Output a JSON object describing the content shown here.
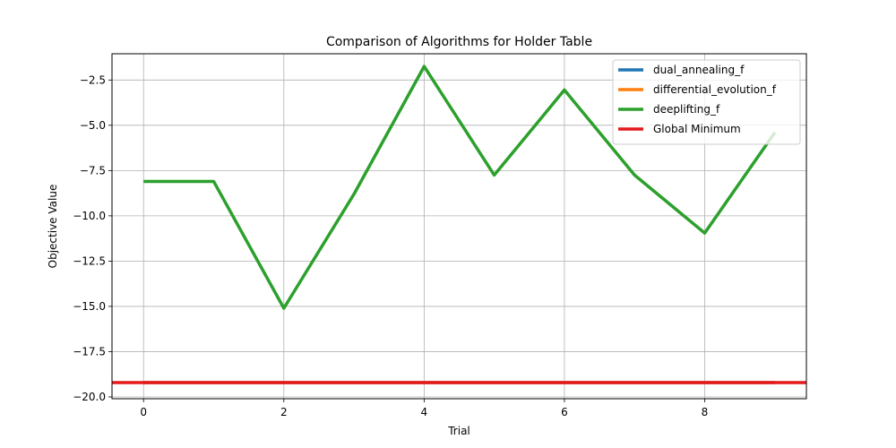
{
  "chart_data": {
    "type": "line",
    "title": "Comparison of Algorithms for Holder Table",
    "xlabel": "Trial",
    "ylabel": "Objective Value",
    "xlim": [
      -0.45,
      9.45
    ],
    "ylim": [
      -20.1,
      -1.05
    ],
    "xticks": [
      0,
      2,
      4,
      6,
      8
    ],
    "xtick_labels": [
      "0",
      "2",
      "4",
      "6",
      "8"
    ],
    "yticks": [
      -2.5,
      -5.0,
      -7.5,
      -10.0,
      -12.5,
      -15.0,
      -17.5,
      -20.0
    ],
    "ytick_labels": [
      "−2.5",
      "−5.0",
      "−7.5",
      "−10.0",
      "−12.5",
      "−15.0",
      "−17.5",
      "−20.0"
    ],
    "grid": true,
    "legend_position": "top-right",
    "x": [
      0,
      1,
      2,
      3,
      4,
      5,
      6,
      7,
      8,
      9
    ],
    "series": [
      {
        "name": "dual_annealing_f",
        "color": "#1f77b4",
        "values": [
          -19.2085,
          -19.2085,
          -19.2085,
          -19.2085,
          -19.2085,
          -19.2085,
          -19.2085,
          -19.2085,
          -19.2085,
          -19.2085
        ]
      },
      {
        "name": "differential_evolution_f",
        "color": "#ff7f0e",
        "values": [
          -19.2085,
          -19.2085,
          -19.2085,
          -19.2085,
          -19.2085,
          -19.2085,
          -19.2085,
          -19.2085,
          -19.2085,
          -19.2085
        ]
      },
      {
        "name": "deeplifting_f",
        "color": "#2ca02c",
        "values": [
          -8.1,
          -8.1,
          -15.1,
          -8.8,
          -1.75,
          -7.75,
          -3.05,
          -7.75,
          -10.95,
          -5.4
        ]
      }
    ],
    "hline": {
      "name": "Global Minimum",
      "color": "#e31a1c",
      "value": -19.2085
    }
  }
}
